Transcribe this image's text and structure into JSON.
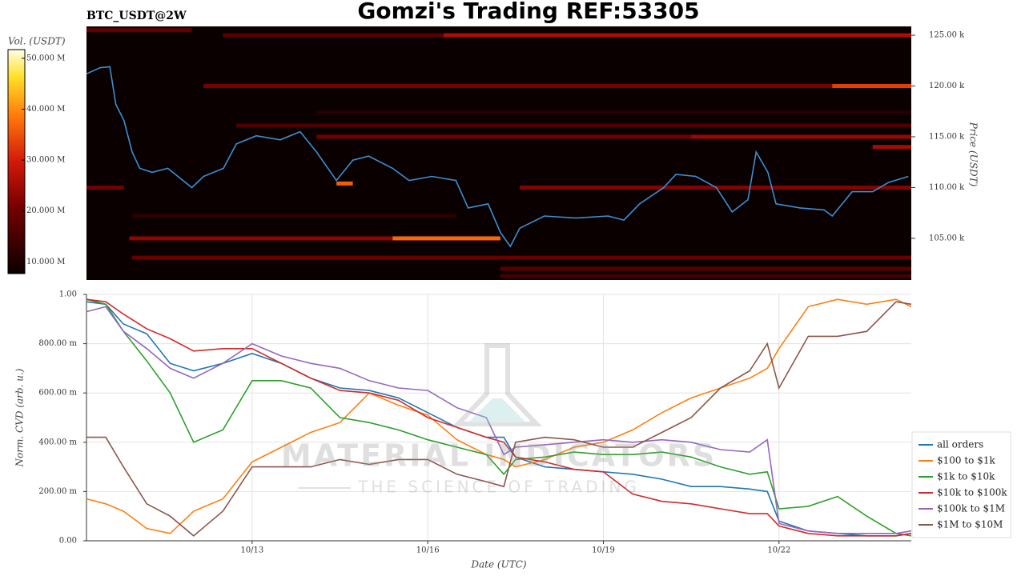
{
  "header": {
    "title": "Gomzi's Trading REF:53305",
    "symbol": "BTC_USDT@2W"
  },
  "watermark": {
    "brand": "MATERIAL INDICATORS",
    "tagline": "THE SCIENCE OF TRADING"
  },
  "chart_data": [
    {
      "type": "heatmap",
      "ylabel": "Price (USDT)",
      "xlim": [
        10.17,
        24.26
      ],
      "ylim": [
        100900,
        125870
      ],
      "yticks": [
        {
          "value": 105000,
          "label": "105.00 k"
        },
        {
          "value": 110000,
          "label": "110.00 k"
        },
        {
          "value": 115000,
          "label": "115.00 k"
        },
        {
          "value": 120000,
          "label": "120.00 k"
        },
        {
          "value": 125000,
          "label": "125.00 k"
        }
      ],
      "colorbar": {
        "label": "Vol. (USDT)",
        "lim": [
          7.7,
          51.7
        ],
        "ticks": [
          {
            "value": 10,
            "label": "10.000 M"
          },
          {
            "value": 20,
            "label": "20.000 M"
          },
          {
            "value": 30,
            "label": "30.000 M"
          },
          {
            "value": 40,
            "label": "40.000 M"
          },
          {
            "value": 50,
            "label": "50.000 M"
          }
        ]
      },
      "bands": [
        {
          "price": 125500,
          "start": 10.17,
          "end": 11.97,
          "volume": 18
        },
        {
          "price": 125000,
          "start": 16.27,
          "end": 24.26,
          "volume": 26
        },
        {
          "price": 125000,
          "start": 12.5,
          "end": 16.27,
          "volume": 17
        },
        {
          "price": 120000,
          "start": 12.17,
          "end": 24.26,
          "volume": 21
        },
        {
          "price": 120000,
          "start": 22.91,
          "end": 24.26,
          "volume": 33
        },
        {
          "price": 117400,
          "start": 14.1,
          "end": 24.26,
          "volume": 11
        },
        {
          "price": 116100,
          "start": 12.73,
          "end": 24.26,
          "volume": 16
        },
        {
          "price": 115000,
          "start": 14.1,
          "end": 24.26,
          "volume": 20
        },
        {
          "price": 115000,
          "start": 20.5,
          "end": 24.26,
          "volume": 24
        },
        {
          "price": 114000,
          "start": 23.6,
          "end": 24.26,
          "volume": 25
        },
        {
          "price": 110400,
          "start": 14.44,
          "end": 14.72,
          "volume": 36
        },
        {
          "price": 110000,
          "start": 10.17,
          "end": 10.81,
          "volume": 20
        },
        {
          "price": 110000,
          "start": 17.57,
          "end": 24.26,
          "volume": 22
        },
        {
          "price": 107200,
          "start": 10.95,
          "end": 16.48,
          "volume": 12
        },
        {
          "price": 105000,
          "start": 10.9,
          "end": 17.24,
          "volume": 23
        },
        {
          "price": 105000,
          "start": 15.4,
          "end": 17.24,
          "volume": 37
        },
        {
          "price": 103100,
          "start": 10.95,
          "end": 24.26,
          "volume": 19
        },
        {
          "price": 102000,
          "start": 17.24,
          "end": 24.26,
          "volume": 17
        },
        {
          "price": 101300,
          "start": 17.24,
          "end": 24.26,
          "volume": 15
        }
      ],
      "price": {
        "color": "#3a8fd6",
        "x": [
          10.17,
          10.4,
          10.57,
          10.67,
          10.81,
          10.95,
          11.08,
          11.29,
          11.56,
          11.97,
          12.17,
          12.51,
          12.73,
          13.07,
          13.48,
          13.82,
          14.1,
          14.44,
          14.72,
          14.99,
          15.4,
          15.68,
          16.07,
          16.48,
          16.69,
          17.03,
          17.24,
          17.41,
          17.57,
          17.99,
          18.53,
          19.08,
          19.35,
          19.62,
          20.03,
          20.24,
          20.58,
          20.93,
          21.2,
          21.47,
          21.61,
          21.81,
          21.95,
          22.36,
          22.77,
          22.91,
          23.25,
          23.6,
          23.87,
          24.21
        ],
        "values": [
          121200,
          121800,
          121900,
          118200,
          116600,
          113500,
          111900,
          111500,
          111900,
          110000,
          111100,
          111900,
          114300,
          115100,
          114700,
          115500,
          113500,
          110700,
          112700,
          113100,
          111900,
          110700,
          111100,
          110700,
          108000,
          108400,
          105600,
          104200,
          106000,
          107200,
          107000,
          107200,
          106800,
          108400,
          110000,
          111300,
          111100,
          110000,
          107600,
          108800,
          113500,
          111500,
          108400,
          108000,
          107800,
          107200,
          109600,
          109600,
          110500,
          111100
        ]
      }
    },
    {
      "type": "line",
      "xlabel": "Date (UTC)",
      "ylabel": "Norm. CVD (arb. u.)",
      "xlim": [
        10.17,
        24.26
      ],
      "ylim": [
        0,
        1
      ],
      "xticks": [
        {
          "value": 13,
          "label": "10/13"
        },
        {
          "value": 16,
          "label": "10/16"
        },
        {
          "value": 19,
          "label": "10/19"
        },
        {
          "value": 22,
          "label": "10/22"
        }
      ],
      "yticks": [
        {
          "value": 0,
          "label": "0.00"
        },
        {
          "value": 0.2,
          "label": "200.00 m"
        },
        {
          "value": 0.4,
          "label": "400.00 m"
        },
        {
          "value": 0.6,
          "label": "600.00 m"
        },
        {
          "value": 0.8,
          "label": "800.00 m"
        },
        {
          "value": 1,
          "label": "1.00"
        }
      ],
      "grid": true,
      "legend": "right",
      "x": [
        10.17,
        10.5,
        10.8,
        11.2,
        11.6,
        12.0,
        12.5,
        13.0,
        13.5,
        14.0,
        14.5,
        15.0,
        15.5,
        16.0,
        16.5,
        17.0,
        17.3,
        17.5,
        18.0,
        18.5,
        19.0,
        19.5,
        20.0,
        20.5,
        21.0,
        21.5,
        21.8,
        22.0,
        22.5,
        23.0,
        23.5,
        24.0,
        24.26
      ],
      "series": [
        {
          "name": "all orders",
          "color": "#1f77b4",
          "values": [
            0.97,
            0.96,
            0.88,
            0.84,
            0.72,
            0.69,
            0.72,
            0.76,
            0.72,
            0.66,
            0.62,
            0.61,
            0.58,
            0.52,
            0.46,
            0.42,
            0.42,
            0.34,
            0.3,
            0.29,
            0.28,
            0.27,
            0.25,
            0.22,
            0.22,
            0.21,
            0.2,
            0.08,
            0.04,
            0.03,
            0.02,
            0.02,
            0.03
          ]
        },
        {
          "name": "$100 to $1k",
          "color": "#ff7f0e",
          "values": [
            0.17,
            0.15,
            0.12,
            0.05,
            0.03,
            0.12,
            0.17,
            0.32,
            0.38,
            0.44,
            0.48,
            0.6,
            0.55,
            0.51,
            0.41,
            0.35,
            0.33,
            0.3,
            0.33,
            0.38,
            0.4,
            0.45,
            0.52,
            0.58,
            0.62,
            0.66,
            0.7,
            0.78,
            0.95,
            0.98,
            0.96,
            0.98,
            0.95
          ]
        },
        {
          "name": "$1k to $10k",
          "color": "#2ca02c",
          "values": [
            0.98,
            0.96,
            0.85,
            0.73,
            0.6,
            0.4,
            0.45,
            0.65,
            0.65,
            0.62,
            0.5,
            0.48,
            0.45,
            0.41,
            0.38,
            0.35,
            0.27,
            0.33,
            0.34,
            0.36,
            0.35,
            0.35,
            0.36,
            0.34,
            0.3,
            0.27,
            0.28,
            0.13,
            0.14,
            0.18,
            0.1,
            0.03,
            0.02
          ]
        },
        {
          "name": "$10k to $100k",
          "color": "#d62728",
          "values": [
            0.98,
            0.97,
            0.92,
            0.86,
            0.82,
            0.77,
            0.78,
            0.78,
            0.72,
            0.66,
            0.61,
            0.6,
            0.57,
            0.5,
            0.46,
            0.42,
            0.4,
            0.34,
            0.32,
            0.29,
            0.28,
            0.19,
            0.16,
            0.15,
            0.13,
            0.11,
            0.11,
            0.06,
            0.03,
            0.02,
            0.02,
            0.02,
            0.03
          ]
        },
        {
          "name": "$100k to $1M",
          "color": "#9467bd",
          "values": [
            0.93,
            0.95,
            0.85,
            0.78,
            0.7,
            0.66,
            0.72,
            0.8,
            0.75,
            0.72,
            0.7,
            0.65,
            0.62,
            0.61,
            0.54,
            0.5,
            0.35,
            0.38,
            0.39,
            0.4,
            0.41,
            0.4,
            0.41,
            0.4,
            0.37,
            0.36,
            0.41,
            0.07,
            0.04,
            0.03,
            0.03,
            0.03,
            0.04
          ]
        },
        {
          "name": "$1M to $10M",
          "color": "#8c564b",
          "values": [
            0.42,
            0.42,
            0.3,
            0.15,
            0.1,
            0.02,
            0.12,
            0.3,
            0.3,
            0.3,
            0.33,
            0.31,
            0.33,
            0.33,
            0.27,
            0.24,
            0.22,
            0.4,
            0.42,
            0.41,
            0.38,
            0.38,
            0.44,
            0.5,
            0.62,
            0.69,
            0.8,
            0.62,
            0.83,
            0.83,
            0.85,
            0.97,
            0.96
          ]
        }
      ]
    }
  ]
}
